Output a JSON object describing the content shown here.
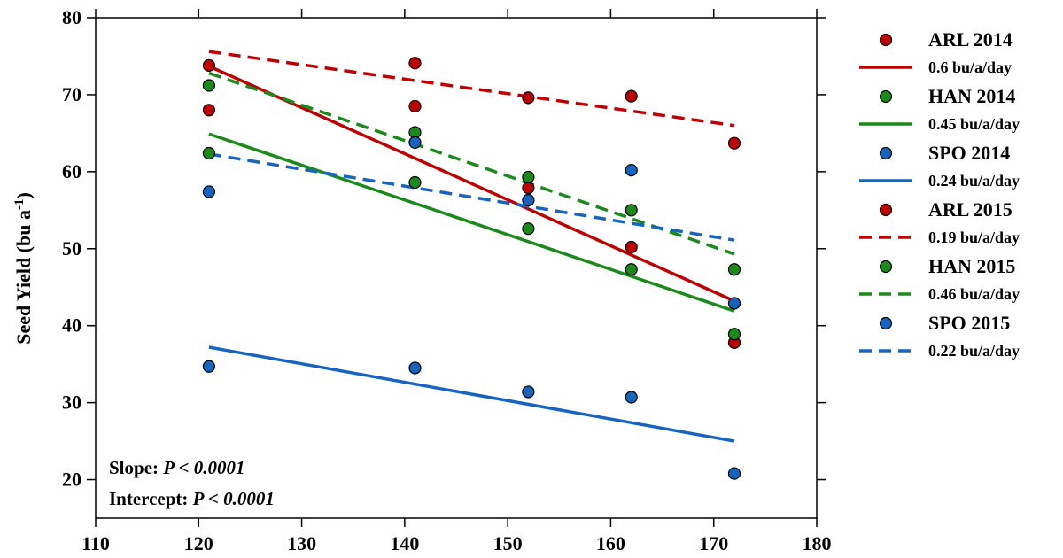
{
  "chart_data": {
    "type": "scatter",
    "ylabel": "Seed Yield (bu a",
    "ylabel_sup": "-1",
    "ylabel_close": ")",
    "xlim": [
      110,
      180
    ],
    "ylim": [
      15,
      80
    ],
    "x_ticks": [
      110,
      120,
      130,
      140,
      150,
      160,
      170,
      180
    ],
    "y_ticks": [
      20,
      30,
      40,
      50,
      60,
      70,
      80
    ],
    "grid": false,
    "legend_position": "right",
    "annotations": {
      "slope_label": "Slope: ",
      "slope_p": "P < 0.0001",
      "intercept_label": "Intercept: ",
      "intercept_p": "P < 0.0001"
    },
    "series": [
      {
        "name": "ARL 2014",
        "color": "#c00000",
        "line_label": "0.6 bu/a/day",
        "dashed": false,
        "points": [
          [
            121,
            73.8
          ],
          [
            141,
            68.5
          ],
          [
            152,
            57.9
          ],
          [
            162,
            50.2
          ],
          [
            172,
            37.8
          ]
        ],
        "fit": [
          [
            121,
            73.7
          ],
          [
            172,
            43.2
          ]
        ]
      },
      {
        "name": "HAN 2014",
        "color": "#1a8a1a",
        "line_label": "0.45 bu/a/day",
        "dashed": false,
        "points": [
          [
            121,
            71.2
          ],
          [
            141,
            58.6
          ],
          [
            152,
            52.6
          ],
          [
            162,
            47.3
          ],
          [
            172,
            38.9
          ]
        ],
        "fit": [
          [
            121,
            64.9
          ],
          [
            172,
            41.9
          ]
        ]
      },
      {
        "name": "SPO 2014",
        "color": "#1565c0",
        "line_label": "0.24 bu/a/day",
        "dashed": false,
        "points": [
          [
            121,
            34.7
          ],
          [
            141,
            34.5
          ],
          [
            152,
            31.4
          ],
          [
            162,
            30.7
          ],
          [
            172,
            20.8
          ]
        ],
        "fit": [
          [
            121,
            37.2
          ],
          [
            172,
            25.0
          ]
        ]
      },
      {
        "name": "ARL 2015",
        "color": "#c00000",
        "line_label": "0.19 bu/a/day",
        "dashed": true,
        "points": [
          [
            121,
            68.0
          ],
          [
            141,
            74.1
          ],
          [
            152,
            69.6
          ],
          [
            162,
            69.8
          ],
          [
            172,
            63.7
          ]
        ],
        "fit": [
          [
            121,
            75.6
          ],
          [
            172,
            66.0
          ]
        ]
      },
      {
        "name": "HAN 2015",
        "color": "#1a8a1a",
        "line_label": "0.46 bu/a/day",
        "dashed": true,
        "points": [
          [
            121,
            62.4
          ],
          [
            141,
            65.1
          ],
          [
            152,
            59.3
          ],
          [
            162,
            55.0
          ],
          [
            172,
            47.3
          ]
        ],
        "fit": [
          [
            121,
            72.8
          ],
          [
            172,
            49.3
          ]
        ]
      },
      {
        "name": "SPO 2015",
        "color": "#1565c0",
        "line_label": "0.22 bu/a/day",
        "dashed": true,
        "points": [
          [
            121,
            57.4
          ],
          [
            141,
            63.8
          ],
          [
            152,
            56.3
          ],
          [
            162,
            60.2
          ],
          [
            172,
            42.9
          ]
        ],
        "fit": [
          [
            121,
            62.3
          ],
          [
            172,
            51.1
          ]
        ]
      }
    ]
  }
}
